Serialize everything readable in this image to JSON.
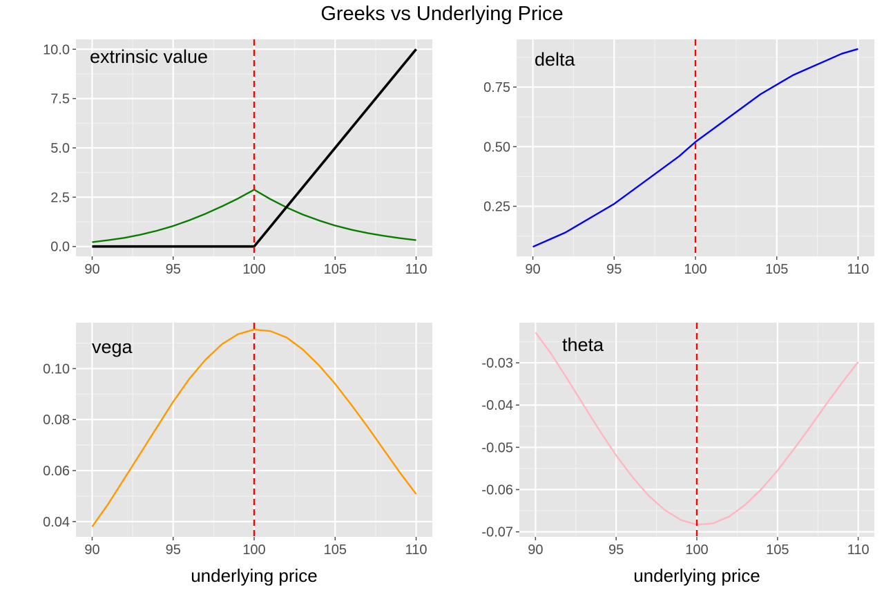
{
  "page": {
    "title": "Greeks vs Underlying Price"
  },
  "style": {
    "panel_bg": "#e5e5e5",
    "grid_major": "#ffffff",
    "grid_minor": "#f2f2f2",
    "tick_color": "#4d4d4d",
    "vline_color": "#ff0000"
  },
  "chart_data": [
    {
      "type": "line",
      "label": "extrinsic value",
      "xlabel": "",
      "ylabel": "",
      "xlim": [
        89,
        111
      ],
      "ylim": [
        -0.5,
        10.5
      ],
      "xticks": [
        90,
        95,
        100,
        105,
        110
      ],
      "xtick_labels": [
        "90",
        "95",
        "100",
        "105",
        "110"
      ],
      "yticks": [
        0,
        2.5,
        5,
        7.5,
        10
      ],
      "ytick_labels": [
        "0.0",
        "2.5",
        "5.0",
        "7.5",
        "10.0"
      ],
      "vline": 100,
      "series": [
        {
          "color": "#0a7d00",
          "width": 2.4,
          "x": [
            90,
            91,
            92,
            93,
            94,
            95,
            96,
            97,
            98,
            99,
            100,
            101,
            102,
            103,
            104,
            105,
            106,
            107,
            108,
            109,
            110
          ],
          "y": [
            0.22,
            0.32,
            0.44,
            0.6,
            0.8,
            1.04,
            1.33,
            1.66,
            2.03,
            2.43,
            2.88,
            2.4,
            1.98,
            1.62,
            1.32,
            1.06,
            0.85,
            0.68,
            0.54,
            0.42,
            0.32
          ]
        },
        {
          "color": "#000000",
          "width": 3.6,
          "x": [
            90,
            100,
            110
          ],
          "y": [
            0,
            0,
            10
          ]
        }
      ]
    },
    {
      "type": "line",
      "label": "delta",
      "xlabel": "",
      "ylabel": "",
      "xlim": [
        89,
        111
      ],
      "ylim": [
        0.04,
        0.95
      ],
      "xticks": [
        90,
        95,
        100,
        105,
        110
      ],
      "xtick_labels": [
        "90",
        "95",
        "100",
        "105",
        "110"
      ],
      "yticks": [
        0.25,
        0.5,
        0.75
      ],
      "ytick_labels": [
        "0.25",
        "0.50",
        "0.75"
      ],
      "vline": 100,
      "series": [
        {
          "color": "#0000ff",
          "width": 2.4,
          "x": [
            90,
            91,
            92,
            93,
            94,
            95,
            96,
            97,
            98,
            99,
            100,
            101,
            102,
            103,
            104,
            105,
            106,
            107,
            108,
            109,
            110
          ],
          "y": [
            0.08,
            0.11,
            0.14,
            0.18,
            0.22,
            0.26,
            0.31,
            0.36,
            0.41,
            0.46,
            0.52,
            0.57,
            0.62,
            0.67,
            0.72,
            0.76,
            0.8,
            0.83,
            0.86,
            0.89,
            0.91
          ]
        }
      ]
    },
    {
      "type": "line",
      "label": "vega",
      "xlabel": "underlying price",
      "ylabel": "",
      "xlim": [
        89,
        111
      ],
      "ylim": [
        0.034,
        0.118
      ],
      "xticks": [
        90,
        95,
        100,
        105,
        110
      ],
      "xtick_labels": [
        "90",
        "95",
        "100",
        "105",
        "110"
      ],
      "yticks": [
        0.04,
        0.06,
        0.08,
        0.1
      ],
      "ytick_labels": [
        "0.04",
        "0.06",
        "0.08",
        "0.10"
      ],
      "vline": 100,
      "series": [
        {
          "color": "#ff9900",
          "width": 2.4,
          "x": [
            90,
            91,
            92,
            93,
            94,
            95,
            96,
            97,
            98,
            99,
            100,
            101,
            102,
            103,
            104,
            105,
            106,
            107,
            108,
            109,
            110
          ],
          "y": [
            0.038,
            0.047,
            0.057,
            0.067,
            0.077,
            0.087,
            0.096,
            0.1035,
            0.1095,
            0.1135,
            0.1153,
            0.1147,
            0.1122,
            0.1075,
            0.1013,
            0.094,
            0.0858,
            0.0772,
            0.0682,
            0.0592,
            0.0508
          ]
        }
      ]
    },
    {
      "type": "line",
      "label": "theta",
      "xlabel": "underlying price",
      "ylabel": "",
      "xlim": [
        89,
        111
      ],
      "ylim": [
        -0.0712,
        -0.0205
      ],
      "xticks": [
        90,
        95,
        100,
        105,
        110
      ],
      "xtick_labels": [
        "90",
        "95",
        "100",
        "105",
        "110"
      ],
      "yticks": [
        -0.07,
        -0.06,
        -0.05,
        -0.04,
        -0.03
      ],
      "ytick_labels": [
        "-0.07",
        "-0.06",
        "-0.05",
        "-0.04",
        "-0.03"
      ],
      "vline": 100,
      "series": [
        {
          "color": "#ffb6c1",
          "width": 2.4,
          "x": [
            90,
            91,
            92,
            93,
            94,
            95,
            96,
            97,
            98,
            99,
            100,
            101,
            102,
            103,
            104,
            105,
            106,
            107,
            108,
            109,
            110
          ],
          "y": [
            -0.0228,
            -0.028,
            -0.034,
            -0.0401,
            -0.0462,
            -0.0519,
            -0.057,
            -0.0614,
            -0.0648,
            -0.0672,
            -0.0683,
            -0.068,
            -0.0664,
            -0.0636,
            -0.0599,
            -0.0555,
            -0.0505,
            -0.0453,
            -0.0399,
            -0.0347,
            -0.0298
          ]
        }
      ]
    }
  ]
}
